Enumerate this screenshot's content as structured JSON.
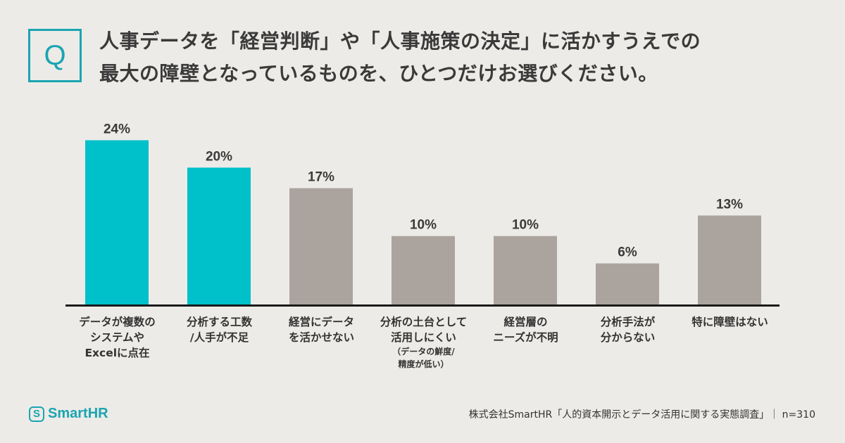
{
  "question": {
    "badge": "Q",
    "line1": "人事データを「経営判断」や「人事施策の決定」に活かすうえでの",
    "line2": "最大の障壁となっているものを、ひとつだけお選びください。"
  },
  "chart_data": {
    "type": "bar",
    "categories": [
      "データが複数の システムや Excelに点在",
      "分析する工数 /人手が不足",
      "経営にデータ を活かせない",
      "分析の土台として 活用しにくい",
      "経営層の ニーズが不明",
      "分析手法が 分からない",
      "特に障壁はない"
    ],
    "category_lines": [
      [
        "データが複数の",
        "システムや",
        "Excelに点在"
      ],
      [
        "分析する工数",
        "/人手が不足"
      ],
      [
        "経営にデータ",
        "を活かせない"
      ],
      [
        "分析の土台として",
        "活用しにくい"
      ],
      [
        "経営層の",
        "ニーズが不明"
      ],
      [
        "分析手法が",
        "分からない"
      ],
      [
        "特に障壁はない"
      ]
    ],
    "category_notes": [
      "",
      "",
      "",
      "（データの鮮度/ 精度が低い）",
      "",
      "",
      ""
    ],
    "note_lines": [
      [],
      [],
      [],
      [
        "（データの鮮度/",
        "精度が低い）"
      ],
      [],
      [],
      []
    ],
    "values": [
      24,
      20,
      17,
      10,
      10,
      6,
      13
    ],
    "labels": [
      "24%",
      "20%",
      "17%",
      "10%",
      "10%",
      "6%",
      "13%"
    ],
    "highlight": [
      true,
      true,
      false,
      false,
      false,
      false,
      false
    ],
    "colors": {
      "highlight": "#00c0ca",
      "normal": "#aba39e",
      "axis": "#1a1a1a"
    },
    "ylim": [
      0,
      26
    ],
    "grid": false,
    "legend": "none"
  },
  "footer": {
    "logo_mark": "S",
    "logo_text": "SmartHR",
    "source": "株式会社SmartHR「人的資本開示とデータ活用に関する実態調査」｜ n=310"
  }
}
